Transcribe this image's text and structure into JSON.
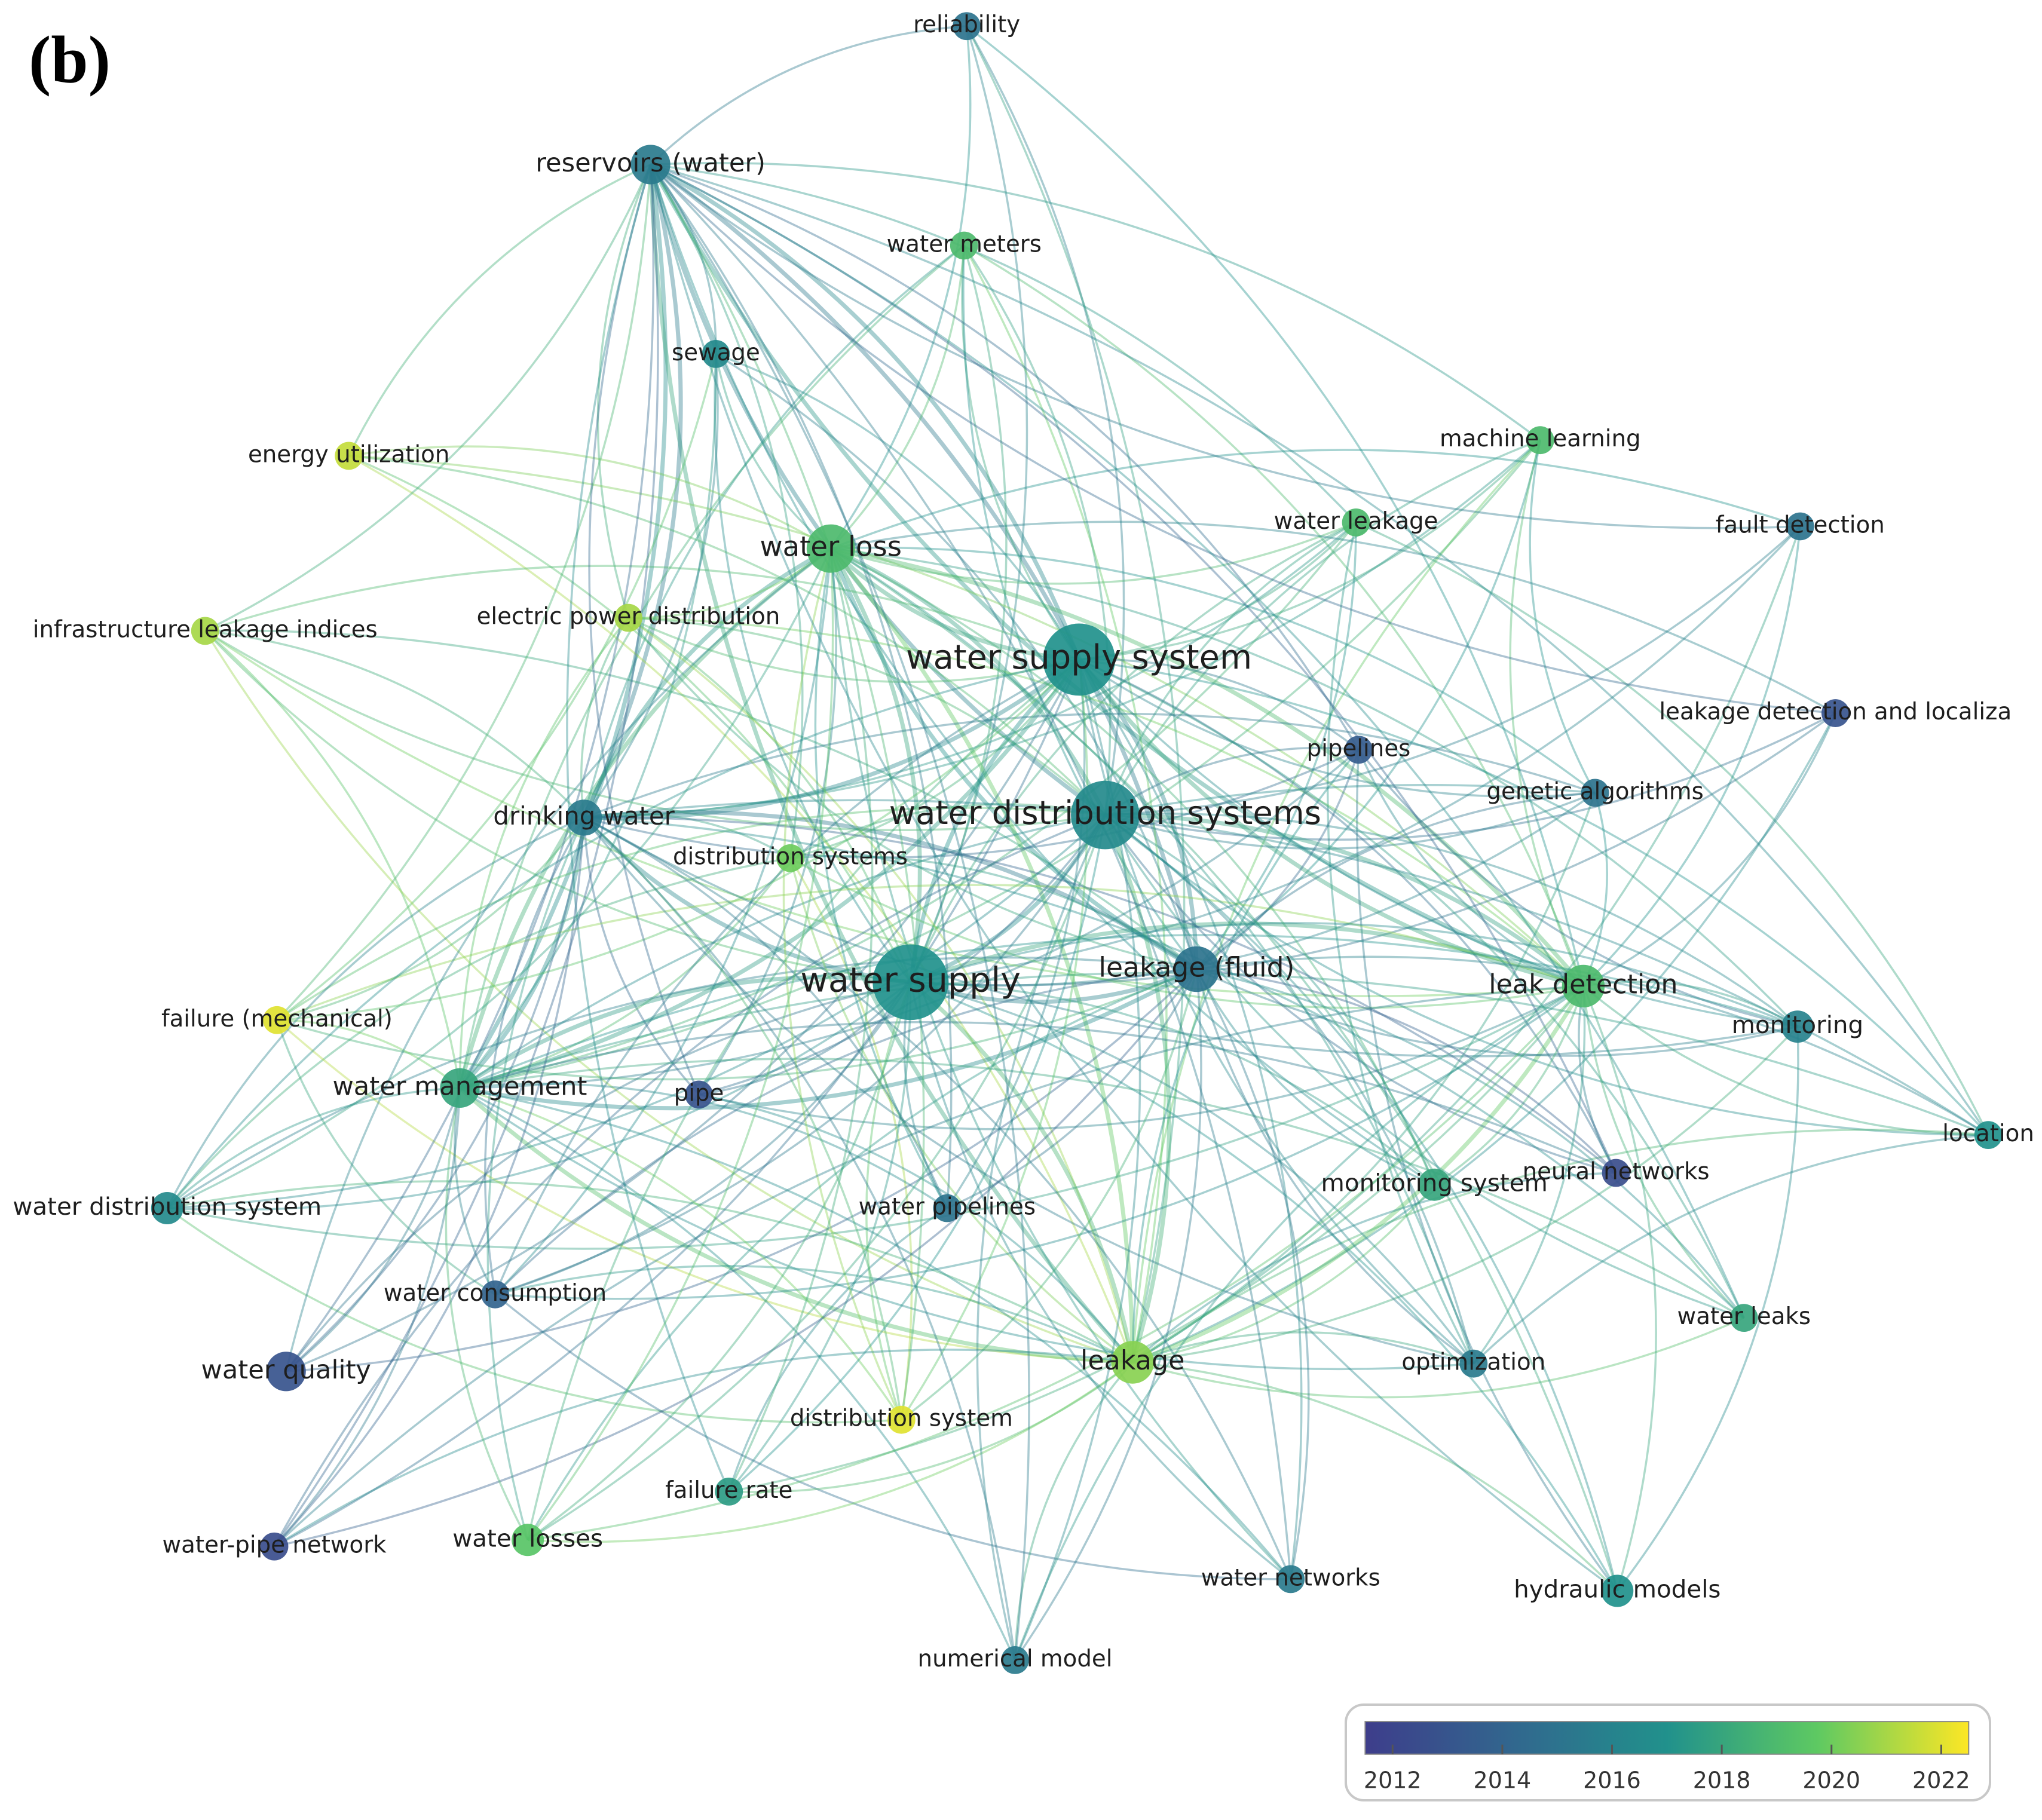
{
  "panel_label": "(b)",
  "nodes": [
    {
      "label": "reliability",
      "year": 2015,
      "weight": 3
    },
    {
      "label": "reservoirs (water)",
      "year": 2015.5,
      "weight": 6
    },
    {
      "label": "water meters",
      "year": 2019,
      "weight": 3
    },
    {
      "label": "sewage",
      "year": 2016.5,
      "weight": 3
    },
    {
      "label": "energy utilization",
      "year": 2021.5,
      "weight": 3
    },
    {
      "label": "machine learning",
      "year": 2019,
      "weight": 3
    },
    {
      "label": "water loss",
      "year": 2019,
      "weight": 9
    },
    {
      "label": "water leakage",
      "year": 2019,
      "weight": 3
    },
    {
      "label": "fault detection",
      "year": 2015,
      "weight": 3
    },
    {
      "label": "infrastructure leakage indices",
      "year": 2021,
      "weight": 3
    },
    {
      "label": "electric power distribution",
      "year": 2021,
      "weight": 3
    },
    {
      "label": "water supply system",
      "year": 2017,
      "weight": 20
    },
    {
      "label": "leakage detection and localiza",
      "year": 2013,
      "weight": 3
    },
    {
      "label": "pipelines",
      "year": 2013.5,
      "weight": 3
    },
    {
      "label": "genetic algorithms",
      "year": 2015,
      "weight": 3
    },
    {
      "label": "drinking water",
      "year": 2015.5,
      "weight": 5
    },
    {
      "label": "water distribution systems",
      "year": 2016.5,
      "weight": 18
    },
    {
      "label": "distribution systems",
      "year": 2020,
      "weight": 3
    },
    {
      "label": "water supply",
      "year": 2017,
      "weight": 22
    },
    {
      "label": "leakage (fluid)",
      "year": 2015,
      "weight": 8
    },
    {
      "label": "leak detection",
      "year": 2019,
      "weight": 7
    },
    {
      "label": "failure (mechanical)",
      "year": 2022,
      "weight": 3
    },
    {
      "label": "monitoring",
      "year": 2016,
      "weight": 4
    },
    {
      "label": "water management",
      "year": 2018,
      "weight": 6
    },
    {
      "label": "pipe",
      "year": 2013,
      "weight": 3
    },
    {
      "label": "location",
      "year": 2017,
      "weight": 3
    },
    {
      "label": "water distribution system",
      "year": 2016.5,
      "weight": 4
    },
    {
      "label": "water pipelines",
      "year": 2015,
      "weight": 3
    },
    {
      "label": "monitoring system",
      "year": 2018,
      "weight": 4
    },
    {
      "label": "neural networks",
      "year": 2012.5,
      "weight": 3
    },
    {
      "label": "water consumption",
      "year": 2014,
      "weight": 3
    },
    {
      "label": "water quality",
      "year": 2013,
      "weight": 6
    },
    {
      "label": "leakage",
      "year": 2020.5,
      "weight": 7
    },
    {
      "label": "water leaks",
      "year": 2018,
      "weight": 3
    },
    {
      "label": "optimization",
      "year": 2015.5,
      "weight": 3
    },
    {
      "label": "distribution system",
      "year": 2022,
      "weight": 3
    },
    {
      "label": "failure rate",
      "year": 2017.5,
      "weight": 3
    },
    {
      "label": "water-pipe network",
      "year": 2012.5,
      "weight": 3
    },
    {
      "label": "water losses",
      "year": 2019.5,
      "weight": 4
    },
    {
      "label": "water networks",
      "year": 2015.5,
      "weight": 3
    },
    {
      "label": "hydraulic models",
      "year": 2017,
      "weight": 4
    },
    {
      "label": "numerical model",
      "year": 2015.5,
      "weight": 3
    }
  ],
  "colorbar": {
    "range": [
      2011.5,
      2022.5
    ],
    "ticks": [
      2012,
      2014,
      2016,
      2018,
      2020,
      2022
    ]
  }
}
